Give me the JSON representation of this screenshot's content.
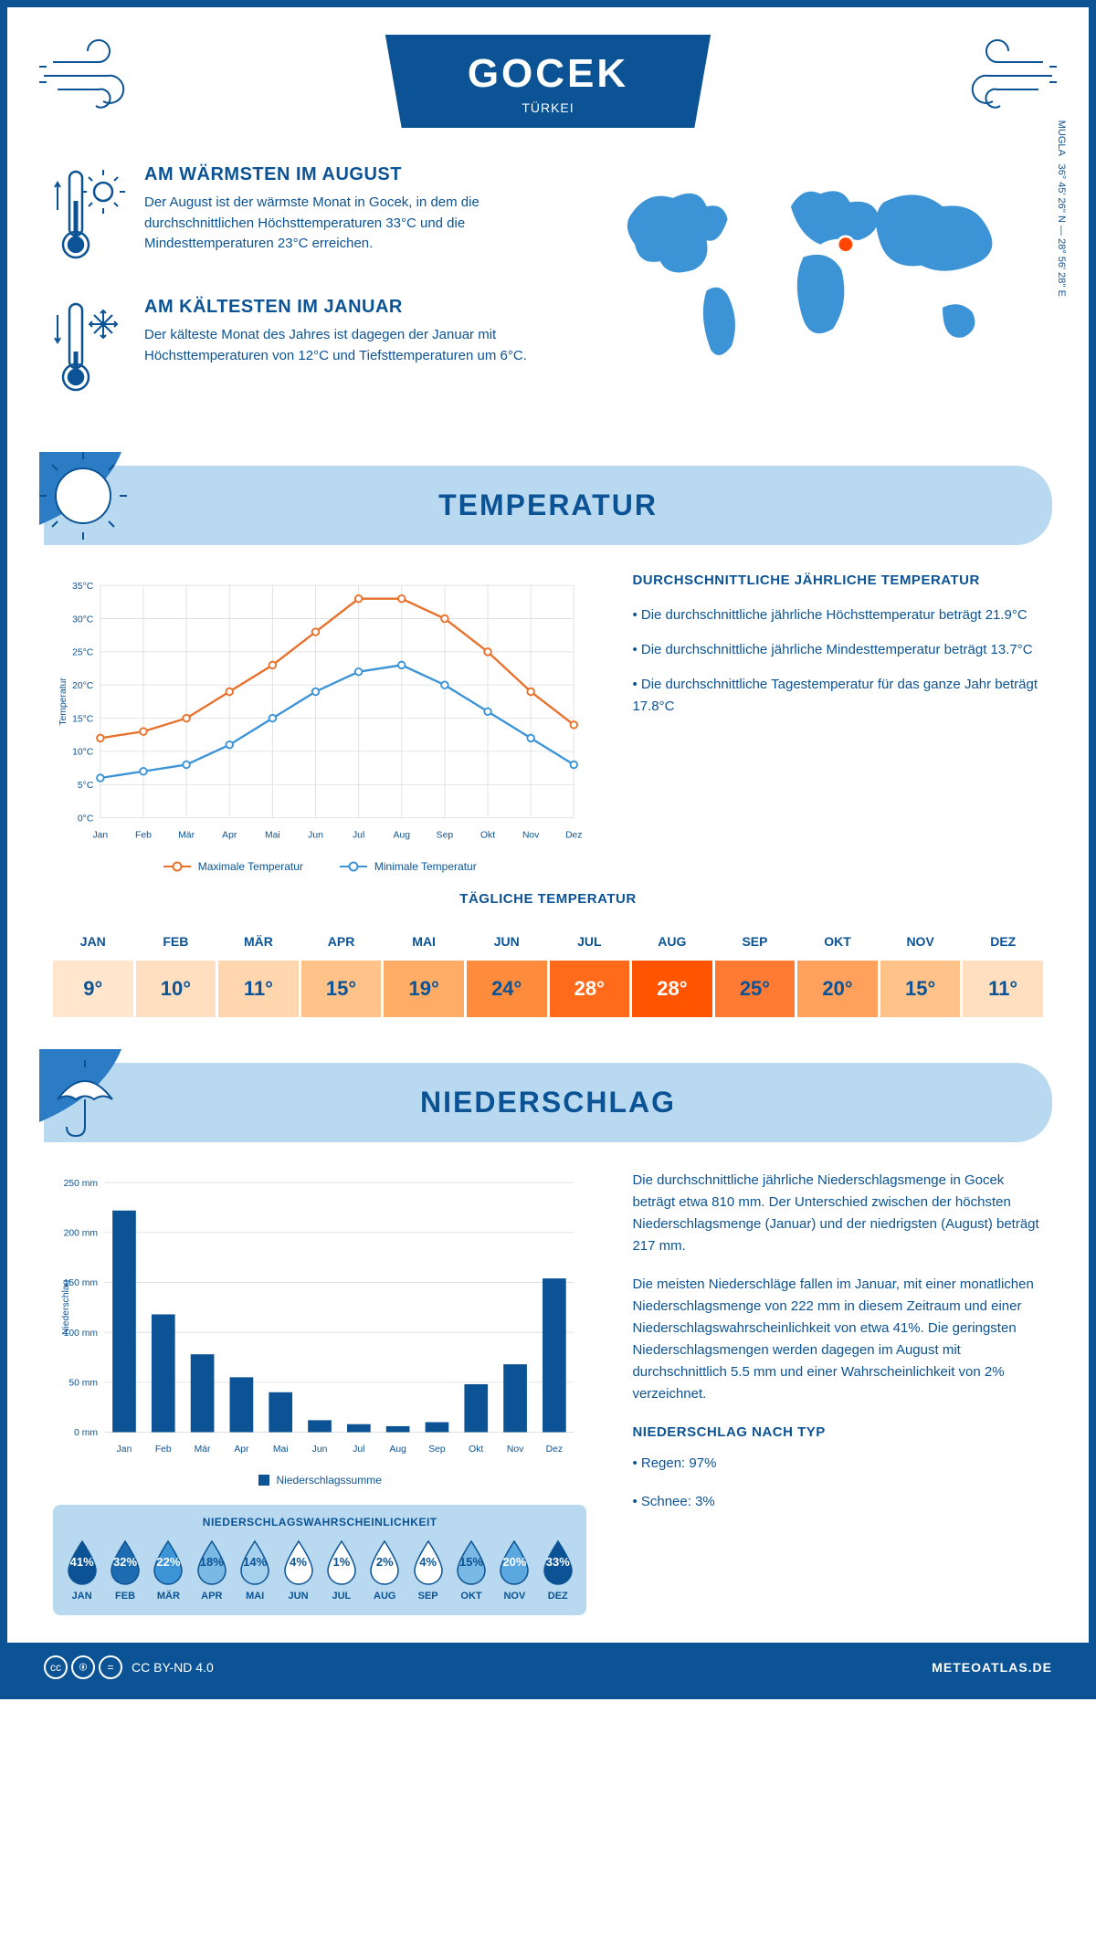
{
  "header": {
    "title": "GOCEK",
    "subtitle": "TÜRKEI"
  },
  "coords": "36° 45' 26'' N — 28° 56' 28'' E",
  "region": "MUGLA",
  "facts": {
    "warm": {
      "title": "AM WÄRMSTEN IM AUGUST",
      "text": "Der August ist der wärmste Monat in Gocek, in dem die durchschnittlichen Höchsttemperaturen 33°C und die Mindesttemperaturen 23°C erreichen."
    },
    "cold": {
      "title": "AM KÄLTESTEN IM JANUAR",
      "text": "Der kälteste Monat des Jahres ist dagegen der Januar mit Höchsttemperaturen von 12°C und Tiefsttemperaturen um 6°C."
    }
  },
  "temp_section": {
    "banner": "TEMPERATUR",
    "info_title": "DURCHSCHNITTLICHE JÄHRLICHE TEMPERATUR",
    "bullets": [
      "• Die durchschnittliche jährliche Höchsttemperatur beträgt 21.9°C",
      "• Die durchschnittliche jährliche Mindesttemperatur beträgt 13.7°C",
      "• Die durchschnittliche Tagestemperatur für das ganze Jahr beträgt 17.8°C"
    ],
    "chart": {
      "ylabel": "Temperatur",
      "ylim": [
        0,
        35
      ],
      "ytick_step": 5,
      "months": [
        "Jan",
        "Feb",
        "Mär",
        "Apr",
        "Mai",
        "Jun",
        "Jul",
        "Aug",
        "Sep",
        "Okt",
        "Nov",
        "Dez"
      ],
      "max_series": {
        "label": "Maximale Temperatur",
        "color": "#e8702a",
        "values": [
          12,
          13,
          15,
          19,
          23,
          28,
          33,
          33,
          30,
          25,
          19,
          14
        ]
      },
      "min_series": {
        "label": "Minimale Temperatur",
        "color": "#3c94d6",
        "values": [
          6,
          7,
          8,
          11,
          15,
          19,
          22,
          23,
          20,
          16,
          12,
          8
        ]
      },
      "grid_color": "#e0e0e0",
      "background_color": "#ffffff"
    },
    "daily_title": "TÄGLICHE TEMPERATUR",
    "daily": {
      "months": [
        "JAN",
        "FEB",
        "MÄR",
        "APR",
        "MAI",
        "JUN",
        "JUL",
        "AUG",
        "SEP",
        "OKT",
        "NOV",
        "DEZ"
      ],
      "values": [
        "9°",
        "10°",
        "11°",
        "15°",
        "19°",
        "24°",
        "28°",
        "28°",
        "25°",
        "20°",
        "15°",
        "11°"
      ],
      "colors": [
        "#ffe6cc",
        "#ffdfbf",
        "#ffd6ad",
        "#ffc288",
        "#ffad66",
        "#ff8c3d",
        "#ff6b1a",
        "#ff5500",
        "#ff7a33",
        "#ffa05c",
        "#ffc288",
        "#ffdfbf"
      ],
      "text_colors": [
        "#0b5394",
        "#0b5394",
        "#0b5394",
        "#0b5394",
        "#0b5394",
        "#0b5394",
        "#ffffff",
        "#ffffff",
        "#0b5394",
        "#0b5394",
        "#0b5394",
        "#0b5394"
      ]
    }
  },
  "precip_section": {
    "banner": "NIEDERSCHLAG",
    "chart": {
      "ylabel": "Niederschlag",
      "ylim": [
        0,
        250
      ],
      "ytick_step": 50,
      "months": [
        "Jan",
        "Feb",
        "Mär",
        "Apr",
        "Mai",
        "Jun",
        "Jul",
        "Aug",
        "Sep",
        "Okt",
        "Nov",
        "Dez"
      ],
      "values": [
        222,
        118,
        78,
        55,
        40,
        12,
        8,
        6,
        10,
        48,
        68,
        154
      ],
      "bar_color": "#0b5394",
      "legend": "Niederschlagssumme",
      "grid_color": "#e0e0e0"
    },
    "prob": {
      "title": "NIEDERSCHLAGSWAHRSCHEINLICHKEIT",
      "months": [
        "JAN",
        "FEB",
        "MÄR",
        "APR",
        "MAI",
        "JUN",
        "JUL",
        "AUG",
        "SEP",
        "OKT",
        "NOV",
        "DEZ"
      ],
      "values": [
        "41%",
        "32%",
        "22%",
        "18%",
        "14%",
        "4%",
        "1%",
        "2%",
        "4%",
        "15%",
        "20%",
        "33%"
      ],
      "fills": [
        "#0b5394",
        "#1d6bb0",
        "#3c94d6",
        "#7ab8e5",
        "#a5d0ee",
        "#ffffff",
        "#ffffff",
        "#ffffff",
        "#ffffff",
        "#7ab8e5",
        "#5ba7df",
        "#0b5394"
      ],
      "text_colors": [
        "#ffffff",
        "#ffffff",
        "#ffffff",
        "#0b5394",
        "#0b5394",
        "#0b5394",
        "#0b5394",
        "#0b5394",
        "#0b5394",
        "#0b5394",
        "#ffffff",
        "#ffffff"
      ]
    },
    "text1": "Die durchschnittliche jährliche Niederschlagsmenge in Gocek beträgt etwa 810 mm. Der Unterschied zwischen der höchsten Niederschlagsmenge (Januar) und der niedrigsten (August) beträgt 217 mm.",
    "text2": "Die meisten Niederschläge fallen im Januar, mit einer monatlichen Niederschlagsmenge von 222 mm in diesem Zeitraum und einer Niederschlagswahrscheinlichkeit von etwa 41%. Die geringsten Niederschlagsmengen werden dagegen im August mit durchschnittlich 5.5 mm und einer Wahrscheinlichkeit von 2% verzeichnet.",
    "type_title": "NIEDERSCHLAG NACH TYP",
    "type_rain": "• Regen: 97%",
    "type_snow": "• Schnee: 3%"
  },
  "footer": {
    "license": "CC BY-ND 4.0",
    "brand": "METEOATLAS.DE"
  }
}
